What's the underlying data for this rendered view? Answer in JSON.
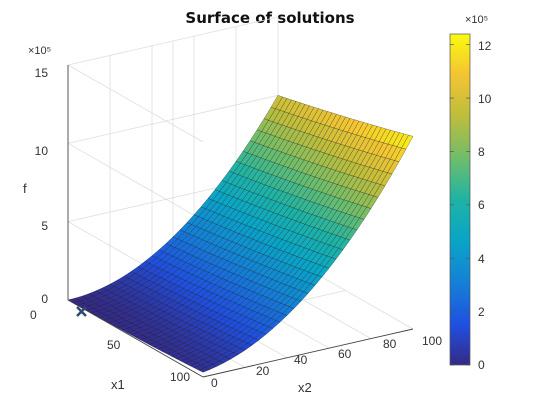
{
  "chart_data": {
    "type": "surface3d",
    "title": "Surface of solutions",
    "xlabel": "x1",
    "ylabel": "x2",
    "zlabel": "f",
    "z_exponent_label": "×10⁵",
    "colorbar_exponent_label": "×10⁵",
    "x1_ticks": [
      "0",
      "50",
      "100"
    ],
    "x2_ticks": [
      "0",
      "20",
      "40",
      "60",
      "80",
      "100"
    ],
    "z_ticks": [
      "0",
      "5",
      "10",
      "15"
    ],
    "colorbar_ticks": [
      "0",
      "2",
      "4",
      "6",
      "8",
      "10",
      "12"
    ],
    "x1_range": [
      0,
      100
    ],
    "x2_range": [
      0,
      100
    ],
    "z_range": [
      0,
      1500000
    ],
    "colorbar_range": [
      0,
      1240000
    ],
    "colormap": "parula",
    "grid": true,
    "min_marker": {
      "symbol": "x",
      "x1": 0,
      "x2": 0,
      "z": 0
    },
    "surface_samples": [
      {
        "x1": 0,
        "x2": 0,
        "f": 0
      },
      {
        "x1": 0,
        "x2": 100,
        "f": 1200000
      },
      {
        "x1": 100,
        "x2": 0,
        "f": 30000
      },
      {
        "x1": 100,
        "x2": 100,
        "f": 1100000
      },
      {
        "x1": 0,
        "x2": 55,
        "f": 400000
      },
      {
        "x1": 60,
        "x2": 55,
        "f": 630000
      }
    ]
  }
}
